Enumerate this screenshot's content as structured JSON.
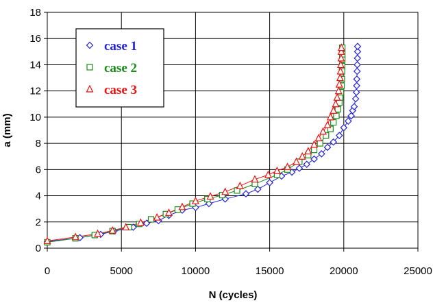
{
  "chart_data": {
    "type": "scatter",
    "xlabel": "N (cycles)",
    "ylabel": "a (mm)",
    "xlim": [
      0,
      25000
    ],
    "ylim": [
      0,
      18
    ],
    "x_ticks": [
      "0",
      "5000",
      "10000",
      "15000",
      "20000",
      "25000"
    ],
    "y_ticks": [
      "0",
      "2",
      "4",
      "6",
      "8",
      "10",
      "12",
      "14",
      "16",
      "18"
    ],
    "grid": true,
    "legend_position": "top-left",
    "series": [
      {
        "name": "case 1",
        "marker": "diamond",
        "color": "#2222dd",
        "points": [
          [
            0,
            0.5
          ],
          [
            2200,
            0.8
          ],
          [
            3600,
            1.05
          ],
          [
            4500,
            1.3
          ],
          [
            5800,
            1.6
          ],
          [
            6700,
            1.9
          ],
          [
            7500,
            2.1
          ],
          [
            8200,
            2.5
          ],
          [
            9100,
            2.9
          ],
          [
            10000,
            3.1
          ],
          [
            10900,
            3.4
          ],
          [
            12000,
            3.75
          ],
          [
            13400,
            4.15
          ],
          [
            14200,
            4.5
          ],
          [
            15000,
            5.0
          ],
          [
            15800,
            5.5
          ],
          [
            16500,
            5.8
          ],
          [
            17000,
            6.1
          ],
          [
            17500,
            6.4
          ],
          [
            18000,
            6.8
          ],
          [
            18500,
            7.2
          ],
          [
            18900,
            7.7
          ],
          [
            19300,
            8.1
          ],
          [
            19700,
            8.6
          ],
          [
            20000,
            9.2
          ],
          [
            20300,
            9.7
          ],
          [
            20500,
            10.1
          ],
          [
            20600,
            10.5
          ],
          [
            20700,
            10.8
          ],
          [
            20800,
            11.4
          ],
          [
            20850,
            11.9
          ],
          [
            20870,
            12.4
          ],
          [
            20880,
            12.9
          ],
          [
            20900,
            13.5
          ],
          [
            20910,
            14.0
          ],
          [
            20920,
            14.5
          ],
          [
            20930,
            15.0
          ],
          [
            20930,
            15.4
          ]
        ]
      },
      {
        "name": "case 2",
        "marker": "square",
        "color": "#1a8a1a",
        "points": [
          [
            0,
            0.45
          ],
          [
            1900,
            0.75
          ],
          [
            3200,
            1.0
          ],
          [
            4400,
            1.3
          ],
          [
            5500,
            1.6
          ],
          [
            6200,
            1.85
          ],
          [
            7000,
            2.2
          ],
          [
            8000,
            2.6
          ],
          [
            8800,
            2.95
          ],
          [
            9800,
            3.4
          ],
          [
            10800,
            3.75
          ],
          [
            11800,
            4.05
          ],
          [
            12800,
            4.4
          ],
          [
            14000,
            4.9
          ],
          [
            15500,
            5.6
          ],
          [
            16200,
            6.0
          ],
          [
            17000,
            6.6
          ],
          [
            17600,
            7.1
          ],
          [
            18000,
            7.5
          ],
          [
            18400,
            8.0
          ],
          [
            18800,
            8.6
          ],
          [
            19100,
            9.1
          ],
          [
            19300,
            9.6
          ],
          [
            19500,
            10.1
          ],
          [
            19600,
            10.6
          ],
          [
            19700,
            11.1
          ],
          [
            19750,
            11.5
          ],
          [
            19800,
            11.9
          ],
          [
            19850,
            12.4
          ],
          [
            19870,
            12.9
          ],
          [
            19880,
            13.5
          ],
          [
            19890,
            13.9
          ],
          [
            19900,
            14.4
          ],
          [
            19900,
            14.8
          ],
          [
            19900,
            15.3
          ]
        ]
      },
      {
        "name": "case 3",
        "marker": "triangle",
        "color": "#ee1111",
        "points": [
          [
            0,
            0.55
          ],
          [
            1900,
            0.85
          ],
          [
            3400,
            1.1
          ],
          [
            4400,
            1.35
          ],
          [
            5300,
            1.6
          ],
          [
            6300,
            1.95
          ],
          [
            7400,
            2.35
          ],
          [
            8200,
            2.7
          ],
          [
            9100,
            3.15
          ],
          [
            10000,
            3.6
          ],
          [
            11000,
            3.95
          ],
          [
            12000,
            4.3
          ],
          [
            13000,
            4.75
          ],
          [
            14000,
            5.25
          ],
          [
            14900,
            5.6
          ],
          [
            15500,
            5.9
          ],
          [
            16200,
            6.2
          ],
          [
            16800,
            6.6
          ],
          [
            17200,
            7.0
          ],
          [
            17600,
            7.4
          ],
          [
            18000,
            7.9
          ],
          [
            18300,
            8.4
          ],
          [
            18600,
            8.9
          ],
          [
            18900,
            9.4
          ],
          [
            19100,
            10.0
          ],
          [
            19300,
            10.5
          ],
          [
            19450,
            11.0
          ],
          [
            19550,
            11.5
          ],
          [
            19650,
            12.0
          ],
          [
            19700,
            12.5
          ],
          [
            19750,
            13.0
          ],
          [
            19780,
            13.5
          ],
          [
            19800,
            14.0
          ],
          [
            19820,
            14.5
          ],
          [
            19830,
            15.0
          ],
          [
            19840,
            15.3
          ]
        ]
      }
    ]
  }
}
